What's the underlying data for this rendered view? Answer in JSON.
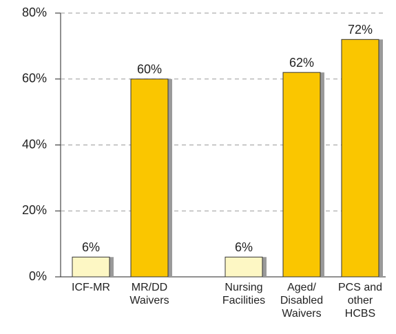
{
  "chart_data": {
    "type": "bar",
    "categories": [
      "ICF-MR",
      "MR/DD\nWaivers",
      "Nursing\nFacilities",
      "Aged/\nDisabled\nWaivers",
      "PCS and\nother\nHCBS"
    ],
    "values": [
      6,
      60,
      6,
      62,
      72
    ],
    "value_labels": [
      "6%",
      "60%",
      "6%",
      "62%",
      "72%"
    ],
    "colors": [
      "#fdf7c4",
      "#fac600",
      "#fdf7c4",
      "#fac600",
      "#fac600"
    ],
    "ylim": [
      0,
      80
    ],
    "yticks": [
      {
        "value": 0,
        "label": "0%"
      },
      {
        "value": 20,
        "label": "20%"
      },
      {
        "value": 40,
        "label": "40%"
      },
      {
        "value": 60,
        "label": "60%"
      },
      {
        "value": 80,
        "label": "80%"
      }
    ],
    "grid": true
  }
}
